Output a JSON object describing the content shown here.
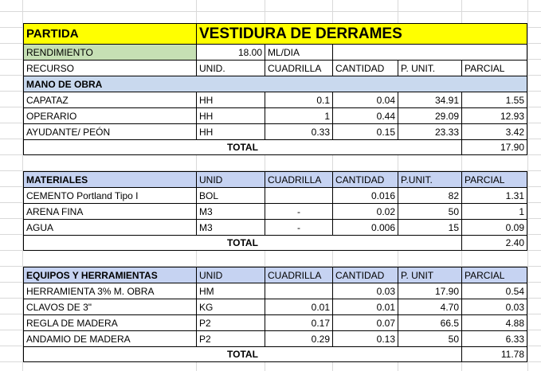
{
  "header": {
    "partida_label": "PARTIDA",
    "partida_value": "VESTIDURA DE DERRAMES",
    "rendimiento_label": "RENDIMIENTO",
    "rendimiento_value": "18.00",
    "rendimiento_unit": "ML/DIA"
  },
  "columns": [
    "RECURSO",
    "UNID.",
    "CUADRILLA",
    "CANTIDAD",
    "P. UNIT.",
    "PARCIAL"
  ],
  "mano_de_obra": {
    "title": "MANO DE OBRA",
    "rows": [
      [
        "CAPATAZ",
        "HH",
        "0.1",
        "0.04",
        "34.91",
        "1.55"
      ],
      [
        "OPERARIO",
        "HH",
        "1",
        "0.44",
        "29.09",
        "12.93"
      ],
      [
        "AYUDANTE/ PEÓN",
        "HH",
        "0.33",
        "0.15",
        "23.33",
        "3.42"
      ]
    ],
    "total_label": "TOTAL",
    "total": "17.90"
  },
  "materiales": {
    "headers": [
      "MATERIALES",
      "UNID",
      "CUADRILLA",
      "CANTIDAD",
      "P.UNIT.",
      "PARCIAL"
    ],
    "rows": [
      [
        "CEMENTO Portland  Tipo I",
        "BOL",
        "",
        "0.016",
        "82",
        "1.31"
      ],
      [
        "ARENA FINA",
        "M3",
        "-",
        "0.02",
        "50",
        "1"
      ],
      [
        "AGUA",
        "M3",
        "-",
        "0.006",
        "15",
        "0.09"
      ]
    ],
    "total_label": "TOTAL",
    "total": "2.40"
  },
  "equipos": {
    "headers": [
      "EQUIPOS Y HERRAMIENTAS",
      "UNID",
      "CUADRILLA",
      "CANTIDAD",
      "P. UNIT",
      "PARCIAL"
    ],
    "rows": [
      [
        "HERRAMIENTA 3% M. OBRA",
        "HM",
        "",
        "0.03",
        "17.90",
        "0.54"
      ],
      [
        "CLAVOS DE 3\"",
        "KG",
        "0.01",
        "0.01",
        "4.70",
        "0.03"
      ],
      [
        "REGLA DE MADERA",
        "P2",
        "0.17",
        "0.07",
        "66.5",
        "4.88"
      ],
      [
        "ANDAMIO DE MADERA",
        "P2",
        "0.29",
        "0.13",
        "50",
        "6.33"
      ]
    ],
    "total_label": "TOTAL",
    "total": "11.78"
  },
  "colors": {
    "partida": "#ffff00",
    "rendimiento": "#c6e0b4",
    "mano_header": "#c9d9ee",
    "section_header": "#c6d3f2"
  }
}
